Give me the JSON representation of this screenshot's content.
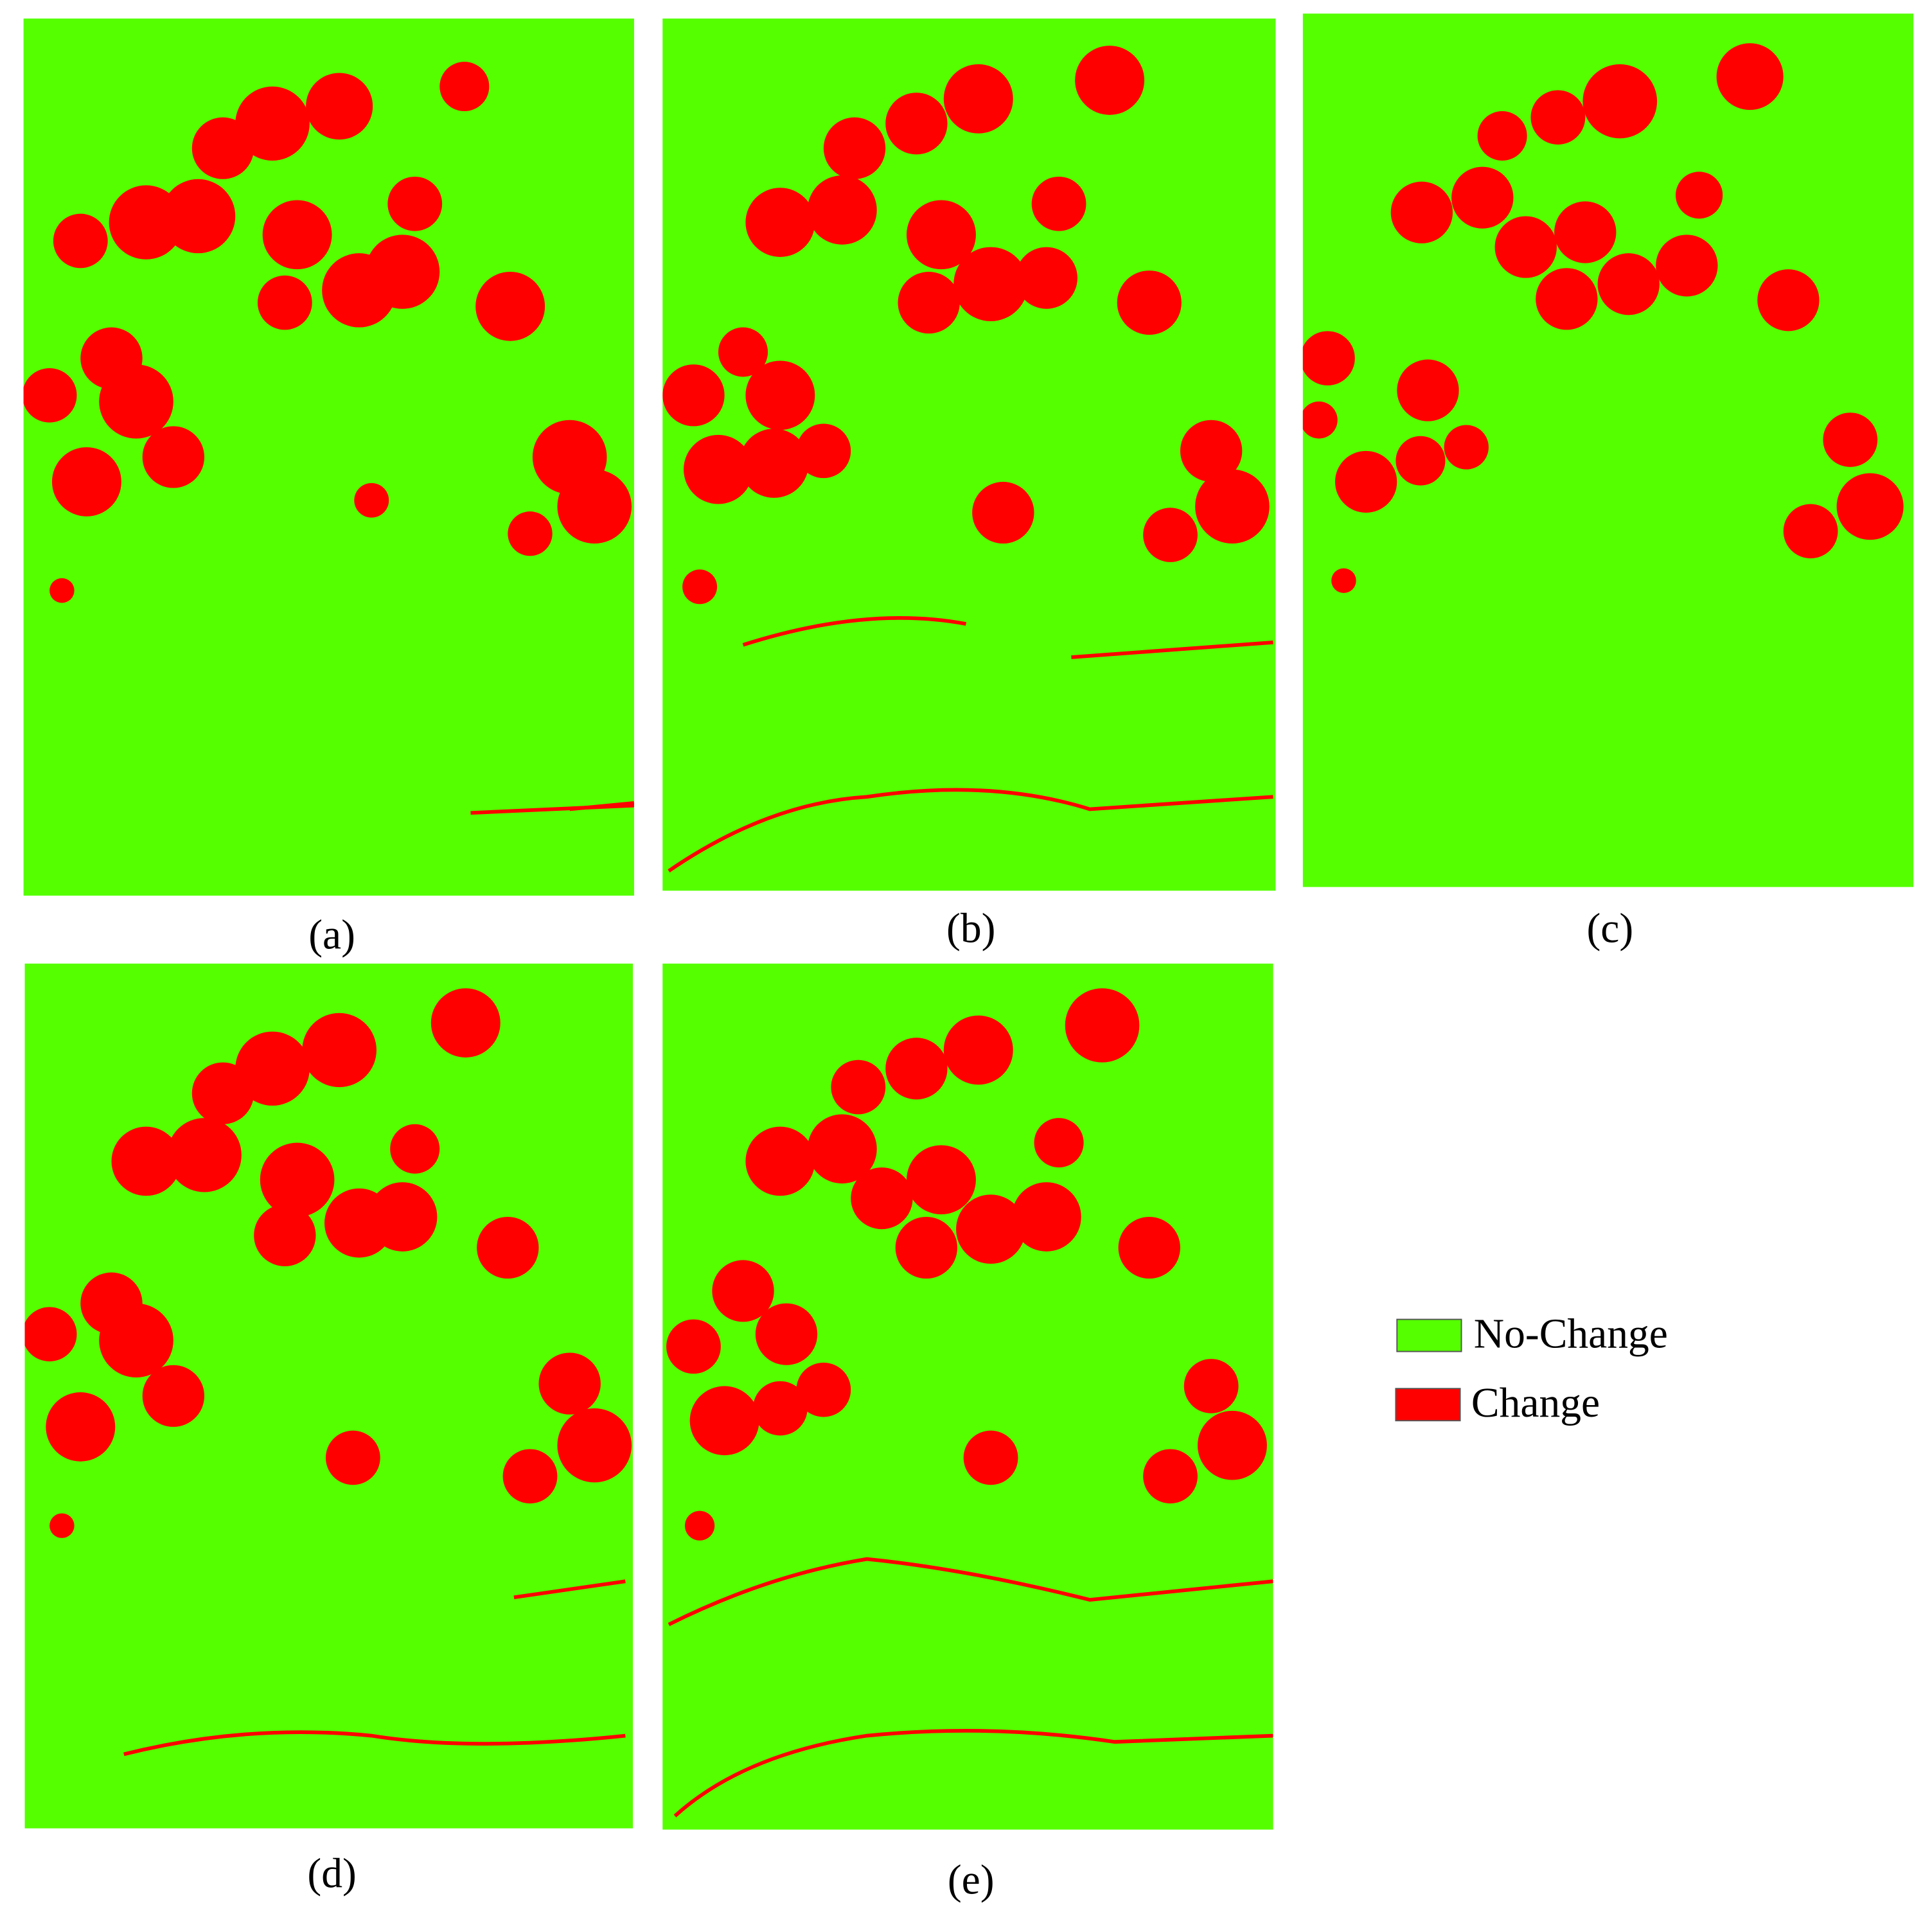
{
  "panels": [
    {
      "label": "(a)"
    },
    {
      "label": "(b)"
    },
    {
      "label": "(c)"
    },
    {
      "label": "(d)"
    },
    {
      "label": "(e)"
    }
  ],
  "legend": [
    {
      "label": "No-Change"
    },
    {
      "label": "Change"
    }
  ]
}
